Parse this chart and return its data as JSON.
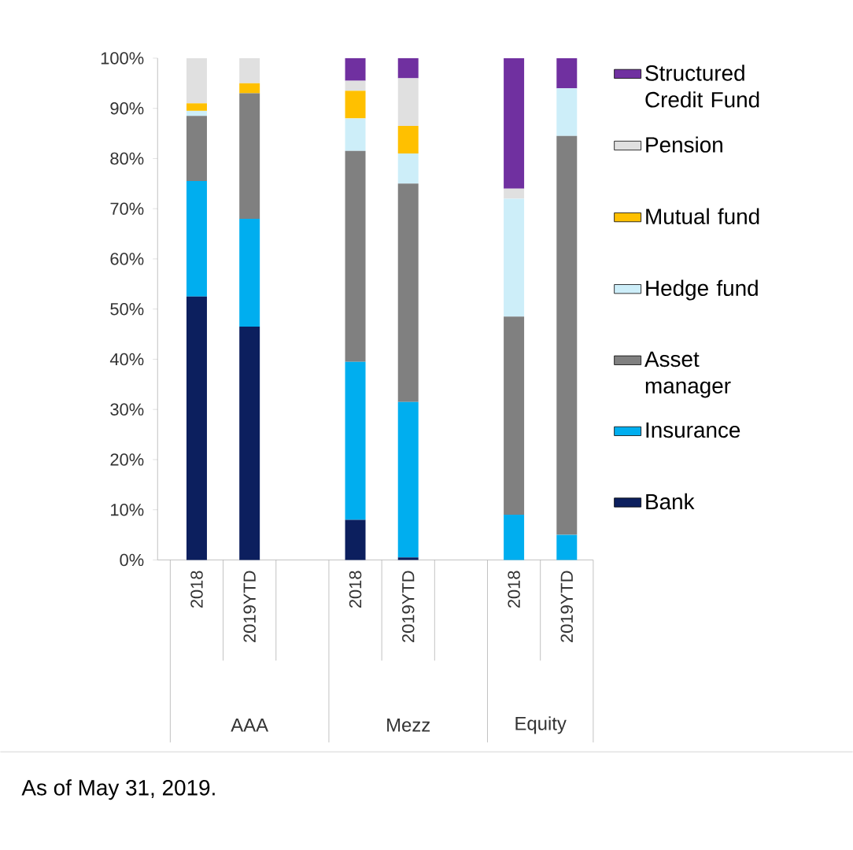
{
  "chart_data": {
    "type": "bar",
    "stacked": true,
    "legend": "right",
    "categories": [
      "2018",
      "2019YTD",
      null,
      "2018",
      "2019YTD",
      null,
      "2018",
      "2019YTD"
    ],
    "series": [
      {
        "name": "Bank",
        "color": "#0c1f5e",
        "values": [
          52.5,
          46.5,
          null,
          8,
          0.5,
          null,
          0,
          0
        ]
      },
      {
        "name": "Insurance",
        "color": "#00aeef",
        "values": [
          23,
          21.5,
          null,
          31.5,
          31,
          null,
          9,
          5
        ]
      },
      {
        "name": "Asset manager",
        "color": "#808080",
        "values": [
          13,
          25,
          null,
          42,
          43.5,
          null,
          39.5,
          79.5
        ]
      },
      {
        "name": "Hedge fund",
        "color": "#cdeef9",
        "values": [
          1,
          null,
          null,
          6.5,
          6,
          null,
          23.5,
          9.5
        ]
      },
      {
        "name": "Mutual fund",
        "color": "#ffc000",
        "values": [
          1.5,
          2,
          null,
          5.5,
          5.5,
          null,
          0,
          0
        ]
      },
      {
        "name": "Pension",
        "color": "#e0e0e0",
        "values": [
          9,
          5,
          null,
          2,
          9.5,
          null,
          2,
          0
        ]
      },
      {
        "name": "Structured Credit Fund",
        "color": "#7030a0",
        "values": [
          0,
          0,
          null,
          4.5,
          4,
          null,
          26,
          6
        ]
      }
    ],
    "ylim": [
      0,
      100
    ],
    "yticks": [
      {
        "value": 0,
        "label": "0%"
      },
      {
        "value": 10,
        "label": "10%"
      },
      {
        "value": 20,
        "label": "20%"
      },
      {
        "value": 30,
        "label": "30%"
      },
      {
        "value": 40,
        "label": "40%"
      },
      {
        "value": 50,
        "label": "50%"
      },
      {
        "value": 60,
        "label": "60%"
      },
      {
        "value": 70,
        "label": "70%"
      },
      {
        "value": 80,
        "label": "80%"
      },
      {
        "value": 90,
        "label": "90%"
      },
      {
        "value": 100,
        "label": "100%"
      }
    ],
    "annotations": [
      "AAA",
      "Mezz",
      "Equity",
      "As of May 31, 2019."
    ]
  }
}
